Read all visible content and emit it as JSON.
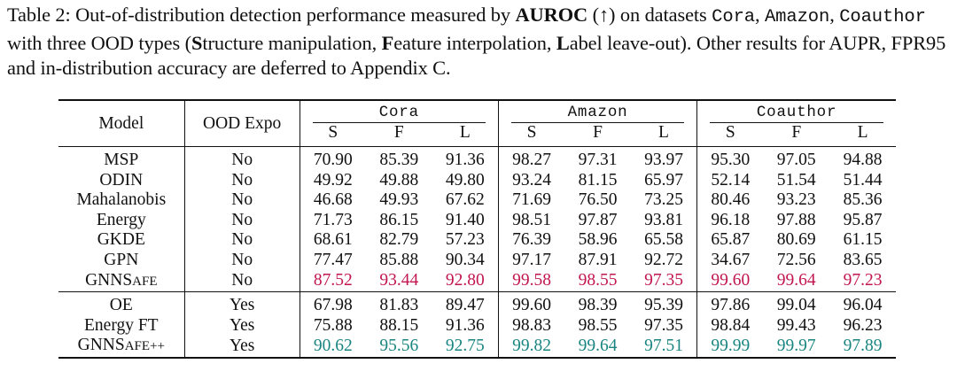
{
  "caption": {
    "parts": [
      {
        "text": "Table 2:  Out-of-distribution detection performance measured by ",
        "style": ""
      },
      {
        "text": "AUROC",
        "style": "b"
      },
      {
        "text": " (↑) on datasets ",
        "style": ""
      },
      {
        "text": "Cora",
        "style": "mono"
      },
      {
        "text": ", ",
        "style": ""
      },
      {
        "text": "Amazon",
        "style": "mono"
      },
      {
        "text": ", ",
        "style": ""
      },
      {
        "text": "Coauthor",
        "style": "mono"
      },
      {
        "text": " with three OOD types (",
        "style": ""
      },
      {
        "text": "S",
        "style": "b"
      },
      {
        "text": "tructure manipulation, ",
        "style": ""
      },
      {
        "text": "F",
        "style": "b"
      },
      {
        "text": "eature interpolation, ",
        "style": ""
      },
      {
        "text": "L",
        "style": "b"
      },
      {
        "text": "abel leave-out). Other results for AUPR, FPR95 and in-distribution accuracy are deferred to Appendix C.",
        "style": ""
      }
    ]
  },
  "table": {
    "col_model": "Model",
    "col_ood": "OOD Expo",
    "datasets": [
      "Cora",
      "Amazon",
      "Coauthor"
    ],
    "subcols": [
      "S",
      "F",
      "L"
    ],
    "colors": {
      "highlight_red": "#c21651",
      "highlight_teal": "#1a8580"
    },
    "groups": [
      {
        "rows": [
          {
            "model": "MSP",
            "ood": "No",
            "values": [
              "70.90",
              "85.39",
              "91.36",
              "98.27",
              "97.31",
              "93.97",
              "95.30",
              "97.05",
              "94.88"
            ],
            "styles": [
              "",
              "",
              "",
              "",
              "",
              "bold",
              "",
              "",
              ""
            ]
          },
          {
            "model": "ODIN",
            "ood": "No",
            "values": [
              "49.92",
              "49.88",
              "49.80",
              "93.24",
              "81.15",
              "65.97",
              "52.14",
              "51.54",
              "51.44"
            ],
            "styles": [
              "",
              "",
              "",
              "",
              "",
              "",
              "",
              "",
              ""
            ]
          },
          {
            "model": "Mahalanobis",
            "ood": "No",
            "values": [
              "46.68",
              "49.93",
              "67.62",
              "71.69",
              "76.50",
              "73.25",
              "80.46",
              "93.23",
              "85.36"
            ],
            "styles": [
              "",
              "",
              "",
              "",
              "",
              "",
              "",
              "",
              ""
            ]
          },
          {
            "model": "Energy",
            "ood": "No",
            "values": [
              "71.73",
              "86.15",
              "91.40",
              "98.51",
              "97.87",
              "93.81",
              "96.18",
              "97.88",
              "95.87"
            ],
            "styles": [
              "",
              "bold",
              "bold",
              "bold",
              "bold",
              "",
              "bold",
              "bold",
              "bold"
            ]
          },
          {
            "model": "GKDE",
            "ood": "No",
            "values": [
              "68.61",
              "82.79",
              "57.23",
              "76.39",
              "58.96",
              "65.58",
              "65.87",
              "80.69",
              "61.15"
            ],
            "styles": [
              "",
              "",
              "",
              "",
              "",
              "",
              "",
              "",
              ""
            ]
          },
          {
            "model": "GPN",
            "ood": "No",
            "values": [
              "77.47",
              "85.88",
              "90.34",
              "97.17",
              "87.91",
              "92.72",
              "34.67",
              "72.56",
              "83.65"
            ],
            "styles": [
              "bold",
              "",
              "",
              "",
              "",
              "",
              "",
              "",
              ""
            ]
          },
          {
            "model": "GNNSAFE",
            "ood": "No",
            "values": [
              "87.52",
              "93.44",
              "92.80",
              "99.58",
              "98.55",
              "97.35",
              "99.60",
              "99.64",
              "97.23"
            ],
            "styles": [
              "red",
              "red",
              "red",
              "red",
              "red",
              "red",
              "red",
              "red",
              "red"
            ]
          }
        ]
      },
      {
        "rows": [
          {
            "model": "OE",
            "ood": "Yes",
            "values": [
              "67.98",
              "81.83",
              "89.47",
              "99.60",
              "98.39",
              "95.39",
              "97.86",
              "99.04",
              "96.04"
            ],
            "styles": [
              "",
              "",
              "",
              "bold",
              "",
              "",
              "",
              "",
              ""
            ]
          },
          {
            "model": "Energy FT",
            "ood": "Yes",
            "values": [
              "75.88",
              "88.15",
              "91.36",
              "98.83",
              "98.55",
              "97.35",
              "98.84",
              "99.43",
              "96.23"
            ],
            "styles": [
              "bold",
              "bold",
              "bold",
              "",
              "bold",
              "bold",
              "bold",
              "bold",
              "bold"
            ]
          },
          {
            "model": "GNNSAFE++",
            "ood": "Yes",
            "values": [
              "90.62",
              "95.56",
              "92.75",
              "99.82",
              "99.64",
              "97.51",
              "99.99",
              "99.97",
              "97.89"
            ],
            "styles": [
              "teal",
              "teal",
              "teal",
              "teal",
              "teal",
              "teal",
              "teal",
              "teal",
              "teal"
            ]
          }
        ]
      }
    ]
  }
}
